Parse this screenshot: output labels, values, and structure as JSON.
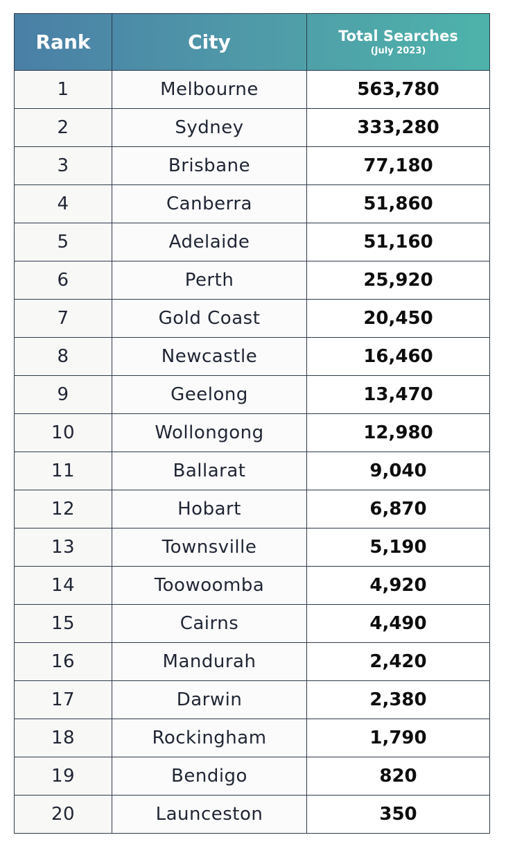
{
  "chart_data": {
    "type": "table",
    "columns": [
      "Rank",
      "City",
      "Total Searches",
      "(July 2023)"
    ],
    "rows": [
      {
        "rank": "1",
        "city": "Melbourne",
        "total": "563,780"
      },
      {
        "rank": "2",
        "city": "Sydney",
        "total": "333,280"
      },
      {
        "rank": "3",
        "city": "Brisbane",
        "total": "77,180"
      },
      {
        "rank": "4",
        "city": "Canberra",
        "total": "51,860"
      },
      {
        "rank": "5",
        "city": "Adelaide",
        "total": "51,160"
      },
      {
        "rank": "6",
        "city": "Perth",
        "total": "25,920"
      },
      {
        "rank": "7",
        "city": "Gold Coast",
        "total": "20,450"
      },
      {
        "rank": "8",
        "city": "Newcastle",
        "total": "16,460"
      },
      {
        "rank": "9",
        "city": "Geelong",
        "total": "13,470"
      },
      {
        "rank": "10",
        "city": "Wollongong",
        "total": "12,980"
      },
      {
        "rank": "11",
        "city": "Ballarat",
        "total": "9,040"
      },
      {
        "rank": "12",
        "city": "Hobart",
        "total": "6,870"
      },
      {
        "rank": "13",
        "city": "Townsville",
        "total": "5,190"
      },
      {
        "rank": "14",
        "city": "Toowoomba",
        "total": "4,920"
      },
      {
        "rank": "15",
        "city": "Cairns",
        "total": "4,490"
      },
      {
        "rank": "16",
        "city": "Mandurah",
        "total": "2,420"
      },
      {
        "rank": "17",
        "city": "Darwin",
        "total": "2,380"
      },
      {
        "rank": "18",
        "city": "Rockingham",
        "total": "1,790"
      },
      {
        "rank": "19",
        "city": "Bendigo",
        "total": "820"
      },
      {
        "rank": "20",
        "city": "Launceston",
        "total": "350"
      }
    ],
    "colors": {
      "header_gradient_start": "#4a7fa6",
      "header_gradient_end": "#4eb3aa",
      "header_text": "#ffffff",
      "border": "#2d3a4a"
    }
  }
}
